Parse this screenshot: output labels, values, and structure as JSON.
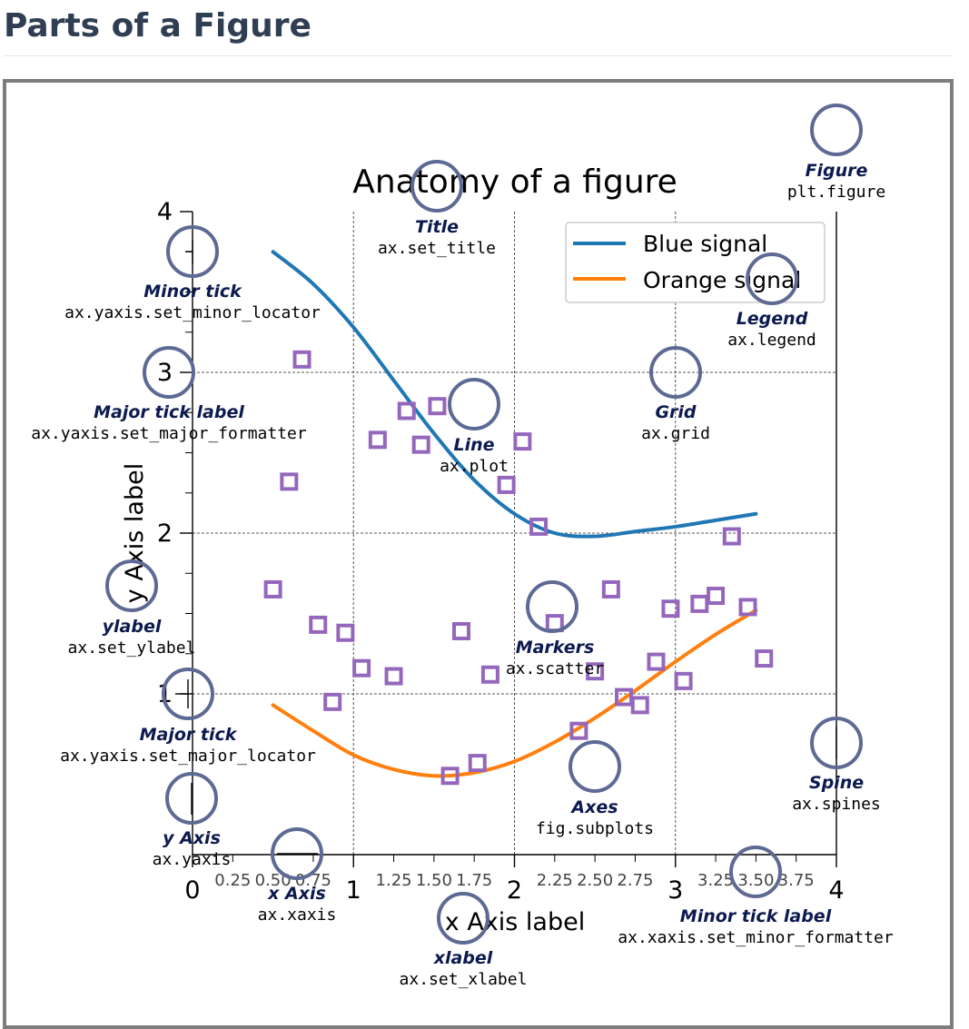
{
  "page": {
    "title": "Parts of a Figure"
  },
  "colors": {
    "blue": "#1f77b4",
    "orange": "#ff7f0e",
    "marker": "#9467bd",
    "annotation_circle": "#5d6a93",
    "annotation_label": "#0c1a4f",
    "frame": "#7d7d7d"
  },
  "chart_data": {
    "type": "line",
    "title": "Anatomy of a figure",
    "xlabel": "x Axis label",
    "ylabel": "y Axis label",
    "xlim": [
      0,
      4
    ],
    "ylim": [
      0,
      4
    ],
    "x_major_ticks": [
      0,
      1,
      2,
      3,
      4
    ],
    "x_major_tick_labels": [
      "0",
      "1",
      "2",
      "3",
      "4"
    ],
    "x_minor_ticks": [
      0.25,
      0.5,
      0.75,
      1.25,
      1.5,
      1.75,
      2.25,
      2.5,
      2.75,
      3.25,
      3.5,
      3.75
    ],
    "x_minor_tick_labels": [
      "0.25",
      "0.50",
      "0.75",
      "1.25",
      "1.50",
      "1.75",
      "2.25",
      "2.50",
      "2.75",
      "3.25",
      "3.50",
      "3.75"
    ],
    "y_major_ticks": [
      1,
      2,
      3,
      4
    ],
    "y_major_tick_labels": [
      "1",
      "2",
      "3",
      "4"
    ],
    "y_minor_ticks": [
      1.25,
      1.5,
      1.75,
      2.25,
      2.5,
      2.75,
      3.25,
      3.5,
      3.75
    ],
    "grid": true,
    "legend": {
      "location": "upper-right",
      "entries": [
        "Blue signal",
        "Orange signal"
      ]
    },
    "series": [
      {
        "name": "Blue signal",
        "kind": "line",
        "x": [
          0.5,
          0.75,
          1.0,
          1.25,
          1.5,
          1.75,
          2.0,
          2.25,
          2.5,
          2.75,
          3.0,
          3.25,
          3.5
        ],
        "y": [
          3.75,
          3.55,
          3.28,
          2.95,
          2.62,
          2.33,
          2.12,
          2.0,
          1.98,
          2.01,
          2.04,
          2.08,
          2.12
        ]
      },
      {
        "name": "Orange signal",
        "kind": "line",
        "x": [
          0.5,
          0.75,
          1.0,
          1.25,
          1.5,
          1.75,
          2.0,
          2.25,
          2.5,
          2.75,
          3.0,
          3.25,
          3.5
        ],
        "y": [
          0.93,
          0.77,
          0.62,
          0.53,
          0.49,
          0.51,
          0.58,
          0.7,
          0.85,
          1.02,
          1.2,
          1.37,
          1.52
        ]
      },
      {
        "name": "",
        "kind": "scatter",
        "marker": "square",
        "x": [
          0.5,
          0.6,
          0.68,
          0.78,
          0.87,
          0.95,
          1.05,
          1.15,
          1.25,
          1.33,
          1.42,
          1.52,
          1.6,
          1.67,
          1.77,
          1.85,
          1.95,
          2.05,
          2.15,
          2.25,
          2.4,
          2.5,
          2.6,
          2.68,
          2.78,
          2.88,
          2.97,
          3.05,
          3.15,
          3.25,
          3.35,
          3.45,
          3.55
        ],
        "y": [
          1.65,
          2.32,
          3.08,
          1.43,
          0.95,
          1.38,
          1.16,
          2.58,
          1.11,
          2.76,
          2.55,
          2.79,
          0.49,
          1.39,
          0.57,
          1.12,
          2.3,
          2.57,
          2.04,
          1.44,
          0.77,
          1.14,
          1.65,
          0.98,
          0.93,
          1.2,
          1.53,
          1.08,
          1.56,
          1.61,
          1.98,
          1.54,
          1.22
        ]
      }
    ]
  },
  "annotations": [
    {
      "id": "figure",
      "label": "Figure",
      "code": "plt.figure"
    },
    {
      "id": "title",
      "label": "Title",
      "code": "ax.set_title"
    },
    {
      "id": "legend",
      "label": "Legend",
      "code": "ax.legend"
    },
    {
      "id": "minor-tick",
      "label": "Minor tick",
      "code": "ax.yaxis.set_minor_locator"
    },
    {
      "id": "major-tick-label",
      "label": "Major tick label",
      "code": "ax.yaxis.set_major_formatter"
    },
    {
      "id": "line",
      "label": "Line",
      "code": "ax.plot"
    },
    {
      "id": "grid",
      "label": "Grid",
      "code": "ax.grid"
    },
    {
      "id": "ylabel",
      "label": "ylabel",
      "code": "ax.set_ylabel"
    },
    {
      "id": "markers",
      "label": "Markers",
      "code": "ax.scatter"
    },
    {
      "id": "major-tick",
      "label": "Major tick",
      "code": "ax.yaxis.set_major_locator"
    },
    {
      "id": "spine",
      "label": "Spine",
      "code": "ax.spines"
    },
    {
      "id": "axes",
      "label": "Axes",
      "code": "fig.subplots"
    },
    {
      "id": "y-axis",
      "label": "y Axis",
      "code": "ax.yaxis"
    },
    {
      "id": "x-axis",
      "label": "x Axis",
      "code": "ax.xaxis"
    },
    {
      "id": "minor-tick-label",
      "label": "Minor tick label",
      "code": "ax.xaxis.set_minor_formatter"
    },
    {
      "id": "xlabel",
      "label": "xlabel",
      "code": "ax.set_xlabel"
    }
  ]
}
